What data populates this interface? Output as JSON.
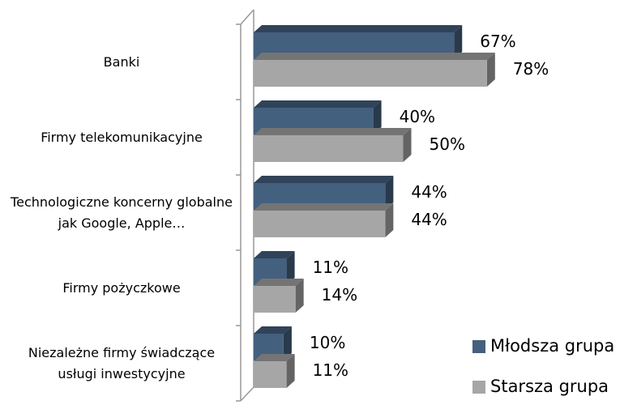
{
  "chart_data": {
    "type": "bar3d_horizontal",
    "categories": [
      "Banki",
      "Firmy telekomunikacyjne",
      "Technologiczne koncerny globalne jak Google, Apple…",
      "Firmy pożyczkowe",
      "Niezależne firmy świadczące usługi inwestycyjne"
    ],
    "series": [
      {
        "name": "Młodsza grupa",
        "color": "#44607f",
        "values": [
          67,
          40,
          44,
          11,
          10
        ],
        "value_labels": [
          "67%",
          "40%",
          "44%",
          "11%",
          "10%"
        ]
      },
      {
        "name": "Starsza grupa",
        "color": "#a6a6a6",
        "values": [
          78,
          50,
          44,
          14,
          11
        ],
        "value_labels": [
          "78%",
          "50%",
          "44%",
          "14%",
          "11%"
        ]
      }
    ],
    "xlim": [
      0,
      100
    ],
    "legend": "right"
  }
}
